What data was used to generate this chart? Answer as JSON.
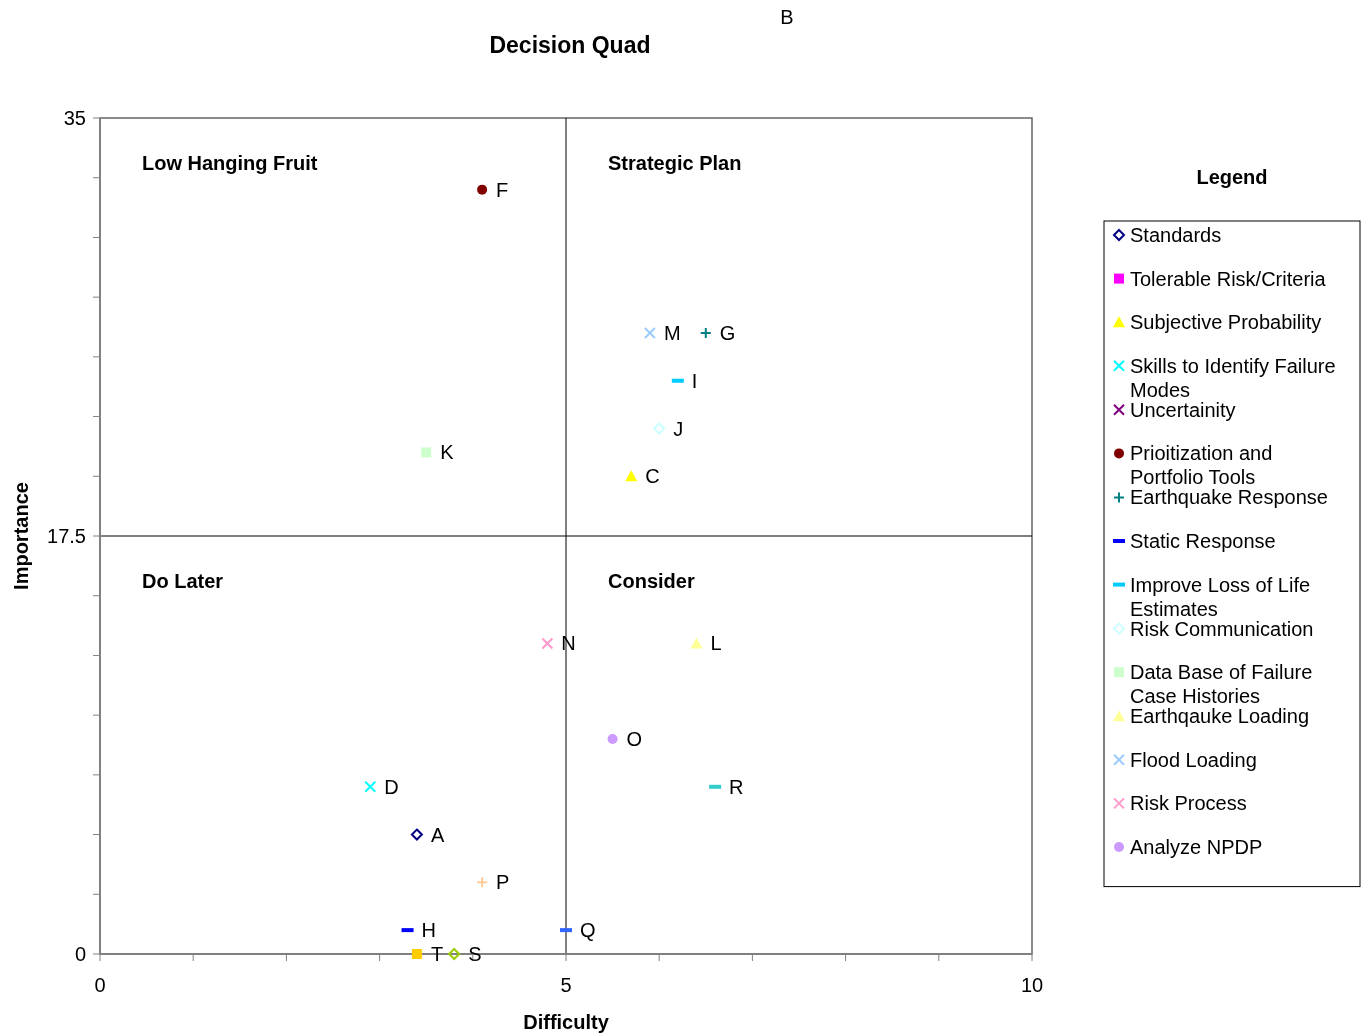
{
  "chart_data": {
    "type": "scatter",
    "title": "Decision Quad",
    "xlabel": "Difficulty",
    "ylabel": "Importance",
    "legend_title": "Legend",
    "legend": "right",
    "xlim": [
      0,
      10
    ],
    "ylim": [
      0,
      35
    ],
    "xticks": [
      0,
      {
        "value": 1,
        "label": null
      },
      {
        "value": 2,
        "label": null
      },
      {
        "value": 3,
        "label": null
      },
      {
        "value": 4,
        "label": null
      },
      5,
      {
        "value": 6,
        "label": null
      },
      {
        "value": 7,
        "label": null
      },
      {
        "value": 8,
        "label": null
      },
      {
        "value": 9,
        "label": null
      },
      10
    ],
    "yticks": [
      0,
      {
        "value": 2.5,
        "label": null
      },
      {
        "value": 5,
        "label": null
      },
      {
        "value": 7.5,
        "label": null
      },
      {
        "value": 10,
        "label": null
      },
      {
        "value": 12.5,
        "label": null
      },
      {
        "value": 15,
        "label": null
      },
      17.5,
      {
        "value": 20,
        "label": null
      },
      {
        "value": 22.5,
        "label": null
      },
      {
        "value": 25,
        "label": null
      },
      {
        "value": 27.5,
        "label": null
      },
      {
        "value": 30,
        "label": null
      },
      {
        "value": 32.5,
        "label": null
      },
      35
    ],
    "ref_lines": [
      {
        "axis": "x",
        "value": 5,
        "color": "#000000"
      },
      {
        "axis": "y",
        "value": 17.5,
        "color": "#000000"
      }
    ],
    "series": [
      {
        "name": "Standards",
        "color": "#000080",
        "marker": "diamond",
        "x": [
          3.4
        ],
        "values": [
          5
        ]
      },
      {
        "name": "Tolerable Risk/Criteria",
        "color": "#ff00ff",
        "marker": "square",
        "x": [
          null
        ],
        "values": [
          null
        ]
      },
      {
        "name": "Subjective Probability",
        "color": "#ffff00",
        "marker": "triangle",
        "x": [
          5.7
        ],
        "values": [
          20
        ]
      },
      {
        "name": "Skills to Identify Failure Modes",
        "color": "#00ffff",
        "marker": "cross",
        "x": [
          2.9
        ],
        "values": [
          7
        ]
      },
      {
        "name": "Uncertainity",
        "color": "#800080",
        "marker": "cross",
        "x": [
          null
        ],
        "values": [
          null
        ]
      },
      {
        "name": "Prioitization and Portfolio Tools",
        "color": "#800000",
        "marker": "circle",
        "x": [
          4.1
        ],
        "values": [
          32
        ]
      },
      {
        "name": "Earthquake Response",
        "color": "#008080",
        "marker": "plus",
        "x": [
          6.5
        ],
        "values": [
          26
        ]
      },
      {
        "name": "Static Response",
        "color": "#0000ff",
        "x": [
          3.3
        ],
        "values": [
          1
        ]
      },
      {
        "name": "Improve Loss of Life Estimates",
        "color": "#00ccff",
        "x": [
          6.2
        ],
        "values": [
          24
        ]
      },
      {
        "name": "Risk Communication",
        "color": "#ccffff",
        "marker": "diamond",
        "x": [
          6
        ],
        "values": [
          22
        ]
      },
      {
        "name": "Data Base of Failure Case Histories",
        "color": "#ccffcc",
        "marker": "square",
        "x": [
          3.5
        ],
        "values": [
          21
        ]
      },
      {
        "name": "Earthqauke Loading",
        "color": "#ffff99",
        "marker": "triangle",
        "x": [
          6.4
        ],
        "values": [
          13
        ]
      },
      {
        "name": "Flood Loading",
        "color": "#99ccff",
        "marker": "cross",
        "x": [
          5.9
        ],
        "values": [
          26
        ]
      },
      {
        "name": "Risk Process",
        "color": "#ff99cc",
        "marker": "cross",
        "x": [
          4.8
        ],
        "values": [
          13
        ]
      },
      {
        "name": "Analyze NPDP",
        "color": "#cc99ff",
        "marker": "circle",
        "x": [
          5.5
        ],
        "values": [
          9
        ]
      },
      {
        "color": "#ffcc99",
        "marker": "plus",
        "x": [
          4.1
        ],
        "values": [
          3
        ]
      },
      {
        "color": "#3366ff",
        "x": [
          5
        ],
        "values": [
          1
        ]
      },
      {
        "color": "#33cccc",
        "x": [
          6.6
        ],
        "values": [
          7
        ]
      },
      {
        "color": "#99cc00",
        "marker": "diamond",
        "x": [
          3.8
        ],
        "values": [
          0
        ]
      },
      {
        "color": "#ffcc00",
        "marker": "square",
        "x": [
          3.4
        ],
        "values": [
          0
        ]
      }
    ],
    "annotations": [
      "Low Hanging Fruit",
      "Strategic Plan",
      "Do Later",
      "Consider",
      "B",
      {
        "text": "A",
        "x": 3.4,
        "y": 5
      },
      {
        "text": "C",
        "x": 5.7,
        "y": 20
      },
      {
        "text": "D",
        "x": 2.9,
        "y": 7
      },
      {
        "text": "F",
        "x": 4.1,
        "y": 32
      },
      {
        "text": "G",
        "x": 6.5,
        "y": 26
      },
      {
        "text": "H",
        "x": 3.3,
        "y": 1
      },
      {
        "text": "I",
        "x": 6.2,
        "y": 24
      },
      {
        "text": "J",
        "x": 6,
        "y": 22
      },
      {
        "text": "K",
        "x": 3.5,
        "y": 21
      },
      {
        "text": "L",
        "x": 6.4,
        "y": 13
      },
      {
        "text": "M",
        "x": 5.9,
        "y": 26
      },
      {
        "text": "N",
        "x": 4.8,
        "y": 13
      },
      {
        "text": "O",
        "x": 5.5,
        "y": 9
      },
      {
        "text": "P",
        "x": 4.1,
        "y": 3
      },
      {
        "text": "Q",
        "x": 5,
        "y": 1
      },
      {
        "text": "R",
        "x": 6.6,
        "y": 7
      },
      {
        "text": "S",
        "x": 3.8,
        "y": 0
      },
      {
        "text": "T",
        "x": 3.4,
        "y": 0
      }
    ]
  }
}
